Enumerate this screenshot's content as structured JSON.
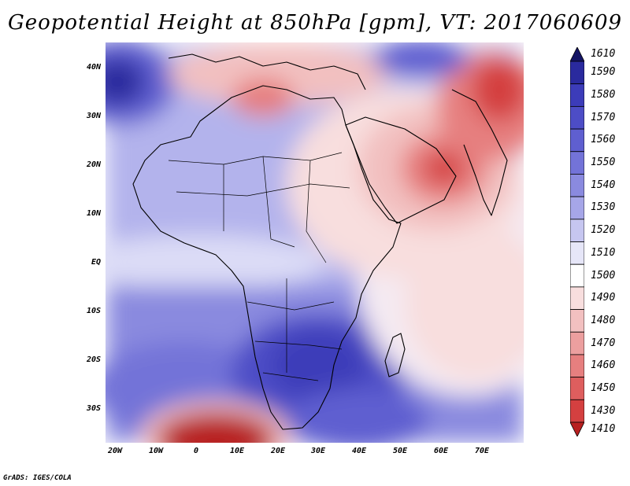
{
  "title": "Geopotential Height at 850hPa [gpm], VT: 2017060609",
  "footer": "GrADS: IGES/COLA",
  "lat_labels": [
    "40N",
    "30N",
    "20N",
    "10N",
    "EQ",
    "10S",
    "20S",
    "30S"
  ],
  "lon_labels": [
    "20W",
    "10W",
    "0",
    "10E",
    "20E",
    "30E",
    "40E",
    "50E",
    "60E",
    "70E"
  ],
  "colorbar": {
    "levels": [
      "1610",
      "1590",
      "1580",
      "1570",
      "1560",
      "1550",
      "1540",
      "1530",
      "1520",
      "1510",
      "1500",
      "1490",
      "1480",
      "1470",
      "1460",
      "1450",
      "1430",
      "1410"
    ],
    "colors": [
      "#141464",
      "#2a2a9e",
      "#3c3cb9",
      "#4d4dc6",
      "#5f5fd0",
      "#7373d8",
      "#8a8adf",
      "#a6a6e8",
      "#c6c6f0",
      "#e6e6f8",
      "#ffffff",
      "#f8dede",
      "#f2c0c0",
      "#ec9f9f",
      "#e67f7f",
      "#de5e5e",
      "#d44040",
      "#b82020"
    ]
  },
  "chart_data": {
    "type": "heatmap",
    "title": "Geopotential Height at 850hPa [gpm], VT: 2017060609",
    "variable": "Geopotential Height",
    "level": "850hPa",
    "units": "gpm",
    "valid_time": "2017060609",
    "lon_range": [
      -22,
      80
    ],
    "lat_range": [
      -37,
      45
    ],
    "xticks": [
      "20W",
      "10W",
      "0",
      "10E",
      "20E",
      "30E",
      "40E",
      "50E",
      "60E",
      "70E"
    ],
    "yticks": [
      "40N",
      "30N",
      "20N",
      "10N",
      "EQ",
      "10S",
      "20S",
      "30S"
    ],
    "colorbar_levels": [
      1410,
      1430,
      1450,
      1460,
      1470,
      1480,
      1490,
      1500,
      1510,
      1520,
      1530,
      1540,
      1550,
      1560,
      1570,
      1580,
      1590,
      1610
    ]
  }
}
